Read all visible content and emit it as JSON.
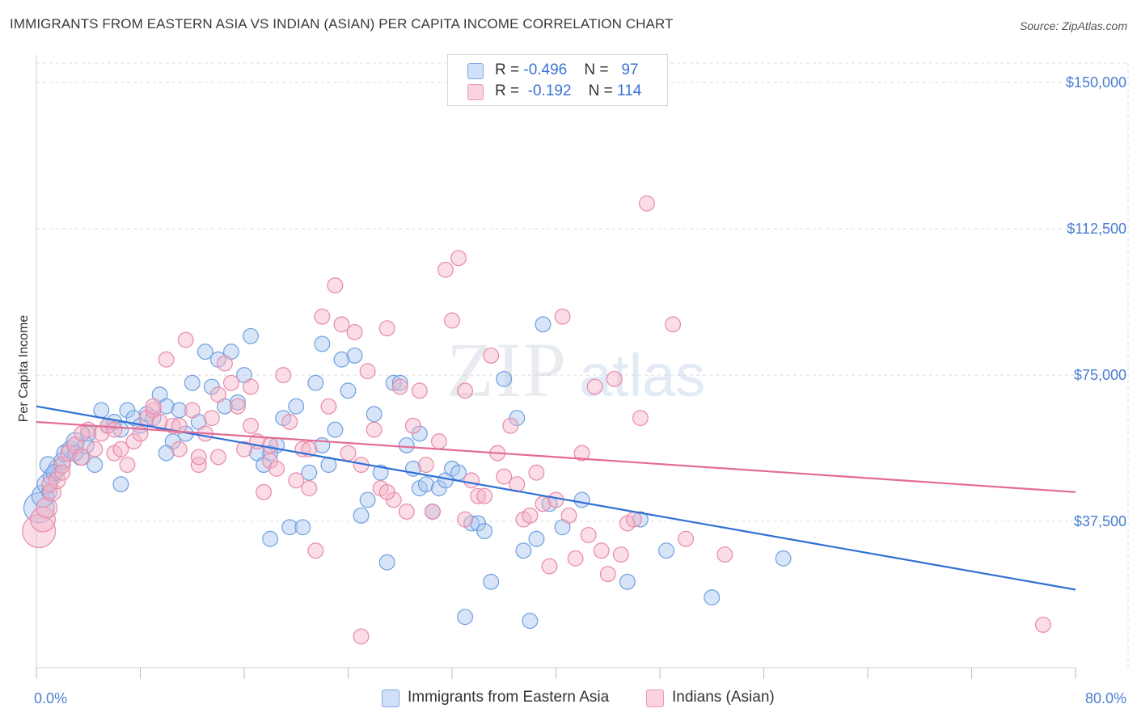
{
  "header": {
    "title": "IMMIGRANTS FROM EASTERN ASIA VS INDIAN (ASIAN) PER CAPITA INCOME CORRELATION CHART",
    "source": "Source: ZipAtlas.com"
  },
  "legend": {
    "rows": [
      {
        "r_label": "R = ",
        "r_value": "-0.496",
        "n_label": "N = ",
        "n_value": "97",
        "color": "#a8c6f0"
      },
      {
        "r_label": "R = ",
        "r_value": "-0.192",
        "n_label": "N = ",
        "n_value": "114",
        "color": "#f5b3c8"
      }
    ]
  },
  "bottom_legend": {
    "items": [
      {
        "label": "Immigrants from Eastern Asia",
        "color": "#a8c6f0"
      },
      {
        "label": "Indians (Asian)",
        "color": "#f5b3c8"
      }
    ]
  },
  "watermark": {
    "zip": "ZIP",
    "atlas": "atlas"
  },
  "colors": {
    "blue_fill": "#a8c6f0",
    "blue_stroke": "#6f9fe0",
    "blue_line": "#2f6fd6",
    "pink_fill": "#f5b3c8",
    "pink_stroke": "#e88aa8",
    "pink_line": "#e36b94",
    "tick_text": "#4a7fd0",
    "grid": "#dcdcdc"
  },
  "chart_data": {
    "type": "scatter",
    "title": "IMMIGRANTS FROM EASTERN ASIA VS INDIAN (ASIAN) PER CAPITA INCOME CORRELATION CHART",
    "xlabel": "",
    "ylabel": "Per Capita Income",
    "xlim": [
      0,
      80
    ],
    "ylim": [
      0,
      155000
    ],
    "x_tick_labels": [
      "0.0%",
      "80.0%"
    ],
    "y_ticks": [
      37500,
      75000,
      112500,
      150000
    ],
    "y_tick_labels": [
      "$37,500",
      "$75,000",
      "$112,500",
      "$150,000"
    ],
    "grid": true,
    "legend_position": "top-center",
    "series": [
      {
        "name": "Immigrants from Eastern Asia",
        "R": -0.496,
        "N": 97,
        "trend": {
          "x": [
            0,
            80
          ],
          "y": [
            67000,
            20000
          ]
        },
        "points": [
          [
            0.2,
            41000,
            2.2
          ],
          [
            0.5,
            44000,
            1.6
          ],
          [
            0.8,
            47000,
            1.4
          ],
          [
            1.2,
            49000,
            1.3
          ],
          [
            1.6,
            51000,
            1.3
          ],
          [
            2.0,
            53000,
            1.2
          ],
          [
            2.2,
            55000,
            1.2
          ],
          [
            2.6,
            56000,
            1.2
          ],
          [
            3.0,
            58000,
            1.3
          ],
          [
            3.4,
            54000,
            1.2
          ],
          [
            0.9,
            52000,
            1.2
          ],
          [
            1.4,
            50000,
            1.2
          ],
          [
            3.8,
            57000,
            1.2
          ],
          [
            4.0,
            60000,
            1.1
          ],
          [
            5.0,
            66000,
            1.1
          ],
          [
            5.5,
            62000,
            1.1
          ],
          [
            6.0,
            63000,
            1.1
          ],
          [
            6.5,
            61000,
            1.1
          ],
          [
            7.0,
            66000,
            1.1
          ],
          [
            7.5,
            64000,
            1.1
          ],
          [
            8.0,
            62000,
            1.1
          ],
          [
            8.5,
            65000,
            1.1
          ],
          [
            9.0,
            64000,
            1.1
          ],
          [
            9.5,
            70000,
            1.1
          ],
          [
            10.0,
            67000,
            1.1
          ],
          [
            10.5,
            58000,
            1.1
          ],
          [
            11.0,
            66000,
            1.1
          ],
          [
            11.5,
            60000,
            1.1
          ],
          [
            12.0,
            73000,
            1.1
          ],
          [
            12.5,
            63000,
            1.1
          ],
          [
            13.0,
            81000,
            1.1
          ],
          [
            13.5,
            72000,
            1.1
          ],
          [
            14.0,
            79000,
            1.1
          ],
          [
            14.5,
            67000,
            1.1
          ],
          [
            15.0,
            81000,
            1.1
          ],
          [
            15.5,
            68000,
            1.1
          ],
          [
            16.0,
            75000,
            1.1
          ],
          [
            16.5,
            85000,
            1.1
          ],
          [
            17.0,
            55000,
            1.1
          ],
          [
            17.5,
            52000,
            1.1
          ],
          [
            18.0,
            33000,
            1.1
          ],
          [
            18.5,
            57000,
            1.1
          ],
          [
            19.0,
            64000,
            1.1
          ],
          [
            19.5,
            36000,
            1.1
          ],
          [
            20.0,
            67000,
            1.1
          ],
          [
            20.5,
            36000,
            1.1
          ],
          [
            21.0,
            50000,
            1.1
          ],
          [
            21.5,
            73000,
            1.1
          ],
          [
            22.0,
            83000,
            1.1
          ],
          [
            22.5,
            52000,
            1.1
          ],
          [
            23.0,
            61000,
            1.1
          ],
          [
            23.5,
            79000,
            1.1
          ],
          [
            24.0,
            71000,
            1.1
          ],
          [
            24.5,
            80000,
            1.1
          ],
          [
            25.0,
            39000,
            1.1
          ],
          [
            25.5,
            43000,
            1.1
          ],
          [
            26.0,
            65000,
            1.1
          ],
          [
            26.5,
            50000,
            1.1
          ],
          [
            27.0,
            27000,
            1.1
          ],
          [
            27.5,
            73000,
            1.1
          ],
          [
            28.0,
            73000,
            1.1
          ],
          [
            28.5,
            57000,
            1.1
          ],
          [
            29.0,
            51000,
            1.1
          ],
          [
            29.5,
            46000,
            1.1
          ],
          [
            30.0,
            47000,
            1.1
          ],
          [
            30.5,
            40000,
            1.1
          ],
          [
            31.0,
            46000,
            1.1
          ],
          [
            31.5,
            48000,
            1.1
          ],
          [
            32.0,
            51000,
            1.1
          ],
          [
            32.5,
            50000,
            1.1
          ],
          [
            33.0,
            13000,
            1.1
          ],
          [
            33.5,
            37000,
            1.1
          ],
          [
            34.0,
            37000,
            1.1
          ],
          [
            34.5,
            35000,
            1.1
          ],
          [
            35.0,
            22000,
            1.1
          ],
          [
            36.0,
            74000,
            1.1
          ],
          [
            37.0,
            64000,
            1.1
          ],
          [
            37.5,
            30000,
            1.1
          ],
          [
            38.5,
            33000,
            1.1
          ],
          [
            39.0,
            88000,
            1.1
          ],
          [
            39.5,
            42000,
            1.1
          ],
          [
            40.5,
            36000,
            1.1
          ],
          [
            42.0,
            43000,
            1.1
          ],
          [
            45.5,
            22000,
            1.1
          ],
          [
            46.5,
            38000,
            1.1
          ],
          [
            48.5,
            30000,
            1.1
          ],
          [
            52.0,
            18000,
            1.1
          ],
          [
            57.5,
            28000,
            1.1
          ],
          [
            6.5,
            47000,
            1.1
          ],
          [
            22.0,
            57000,
            1.1
          ],
          [
            29.5,
            60000,
            1.1
          ],
          [
            3.0,
            55000,
            1.1
          ],
          [
            1.0,
            45000,
            1.1
          ],
          [
            10.0,
            55000,
            1.1
          ],
          [
            38.0,
            12000,
            1.1
          ],
          [
            4.5,
            52000,
            1.1
          ],
          [
            18.0,
            55000,
            1.1
          ]
        ]
      },
      {
        "name": "Indians (Asian)",
        "R": -0.192,
        "N": 114,
        "trend": {
          "x": [
            0,
            80
          ],
          "y": [
            63000,
            45000
          ]
        },
        "points": [
          [
            0.2,
            35000,
            2.4
          ],
          [
            0.5,
            38000,
            1.8
          ],
          [
            0.8,
            41000,
            1.5
          ],
          [
            1.2,
            45000,
            1.3
          ],
          [
            1.6,
            48000,
            1.2
          ],
          [
            2.0,
            52000,
            1.2
          ],
          [
            2.5,
            55000,
            1.2
          ],
          [
            3.0,
            57000,
            1.2
          ],
          [
            3.5,
            54000,
            1.2
          ],
          [
            4.0,
            61000,
            1.1
          ],
          [
            4.5,
            56000,
            1.1
          ],
          [
            5.0,
            60000,
            1.1
          ],
          [
            5.5,
            62000,
            1.1
          ],
          [
            6.0,
            55000,
            1.1
          ],
          [
            6.5,
            56000,
            1.1
          ],
          [
            7.0,
            52000,
            1.1
          ],
          [
            7.5,
            58000,
            1.1
          ],
          [
            8.0,
            60000,
            1.1
          ],
          [
            8.5,
            64000,
            1.1
          ],
          [
            9.0,
            66000,
            1.1
          ],
          [
            9.5,
            63000,
            1.1
          ],
          [
            10.0,
            79000,
            1.1
          ],
          [
            10.5,
            62000,
            1.1
          ],
          [
            11.0,
            56000,
            1.1
          ],
          [
            11.5,
            84000,
            1.1
          ],
          [
            12.0,
            66000,
            1.1
          ],
          [
            12.5,
            52000,
            1.1
          ],
          [
            13.0,
            60000,
            1.1
          ],
          [
            13.5,
            64000,
            1.1
          ],
          [
            14.0,
            70000,
            1.1
          ],
          [
            14.5,
            78000,
            1.1
          ],
          [
            15.0,
            73000,
            1.1
          ],
          [
            15.5,
            67000,
            1.1
          ],
          [
            16.0,
            56000,
            1.1
          ],
          [
            16.5,
            62000,
            1.1
          ],
          [
            17.0,
            58000,
            1.1
          ],
          [
            17.5,
            45000,
            1.1
          ],
          [
            18.0,
            53000,
            1.1
          ],
          [
            18.5,
            51000,
            1.1
          ],
          [
            19.0,
            75000,
            1.1
          ],
          [
            19.5,
            63000,
            1.1
          ],
          [
            20.0,
            48000,
            1.1
          ],
          [
            20.5,
            56000,
            1.1
          ],
          [
            21.0,
            46000,
            1.1
          ],
          [
            21.5,
            30000,
            1.1
          ],
          [
            22.0,
            90000,
            1.1
          ],
          [
            22.5,
            67000,
            1.1
          ],
          [
            23.0,
            98000,
            1.1
          ],
          [
            23.5,
            88000,
            1.1
          ],
          [
            24.0,
            55000,
            1.1
          ],
          [
            24.5,
            86000,
            1.1
          ],
          [
            25.0,
            52000,
            1.1
          ],
          [
            25.5,
            76000,
            1.1
          ],
          [
            26.0,
            61000,
            1.1
          ],
          [
            26.5,
            46000,
            1.1
          ],
          [
            27.0,
            87000,
            1.1
          ],
          [
            27.5,
            43000,
            1.1
          ],
          [
            28.0,
            72000,
            1.1
          ],
          [
            28.5,
            40000,
            1.1
          ],
          [
            29.0,
            62000,
            1.1
          ],
          [
            29.5,
            71000,
            1.1
          ],
          [
            30.0,
            52000,
            1.1
          ],
          [
            30.5,
            40000,
            1.1
          ],
          [
            31.0,
            58000,
            1.1
          ],
          [
            31.5,
            102000,
            1.1
          ],
          [
            32.0,
            89000,
            1.1
          ],
          [
            32.5,
            105000,
            1.1
          ],
          [
            33.0,
            38000,
            1.1
          ],
          [
            33.5,
            48000,
            1.1
          ],
          [
            34.0,
            44000,
            1.1
          ],
          [
            34.5,
            44000,
            1.1
          ],
          [
            35.0,
            80000,
            1.1
          ],
          [
            35.5,
            55000,
            1.1
          ],
          [
            36.0,
            49000,
            1.1
          ],
          [
            36.5,
            62000,
            1.1
          ],
          [
            37.0,
            47000,
            1.1
          ],
          [
            37.5,
            38000,
            1.1
          ],
          [
            38.0,
            39000,
            1.1
          ],
          [
            38.5,
            50000,
            1.1
          ],
          [
            39.0,
            42000,
            1.1
          ],
          [
            39.5,
            26000,
            1.1
          ],
          [
            40.0,
            43000,
            1.1
          ],
          [
            40.5,
            90000,
            1.1
          ],
          [
            41.0,
            39000,
            1.1
          ],
          [
            41.5,
            28000,
            1.1
          ],
          [
            42.0,
            55000,
            1.1
          ],
          [
            42.5,
            34000,
            1.1
          ],
          [
            43.0,
            72000,
            1.1
          ],
          [
            43.5,
            30000,
            1.1
          ],
          [
            44.0,
            24000,
            1.1
          ],
          [
            44.5,
            74000,
            1.1
          ],
          [
            45.0,
            29000,
            1.1
          ],
          [
            45.5,
            37000,
            1.1
          ],
          [
            46.0,
            38000,
            1.1
          ],
          [
            46.5,
            64000,
            1.1
          ],
          [
            47.0,
            119000,
            1.1
          ],
          [
            49.0,
            88000,
            1.1
          ],
          [
            50.0,
            33000,
            1.1
          ],
          [
            53.0,
            29000,
            1.1
          ],
          [
            77.5,
            11000,
            1.1
          ],
          [
            25.0,
            8000,
            1.1
          ],
          [
            21.0,
            56000,
            1.1
          ],
          [
            16.5,
            72000,
            1.1
          ],
          [
            11.0,
            62000,
            1.1
          ],
          [
            6.0,
            61000,
            1.1
          ],
          [
            3.5,
            60000,
            1.1
          ],
          [
            2.0,
            50000,
            1.1
          ],
          [
            1.0,
            47000,
            1.1
          ],
          [
            12.5,
            54000,
            1.1
          ],
          [
            33.0,
            71000,
            1.1
          ],
          [
            27.0,
            45000,
            1.1
          ],
          [
            18.0,
            57000,
            1.1
          ],
          [
            9.0,
            67000,
            1.1
          ],
          [
            14.0,
            54000,
            1.1
          ]
        ]
      }
    ]
  }
}
